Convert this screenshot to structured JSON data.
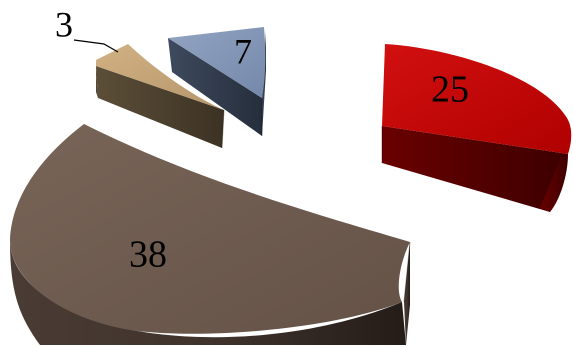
{
  "chart_data": {
    "type": "pie",
    "style": "3d-exploded",
    "title": "",
    "legend": "none",
    "slices": [
      {
        "label": "25",
        "value": 25,
        "color": "#c00000",
        "side_color": "#5a0000"
      },
      {
        "label": "38",
        "value": 38,
        "color": "#6e5a50",
        "side_color": "#3a2e28"
      },
      {
        "label": "3",
        "value": 3,
        "color": "#c8a878",
        "side_color": "#4e4230"
      },
      {
        "label": "7",
        "value": 7,
        "color": "#8496b4",
        "side_color": "#333c4c"
      }
    ]
  }
}
